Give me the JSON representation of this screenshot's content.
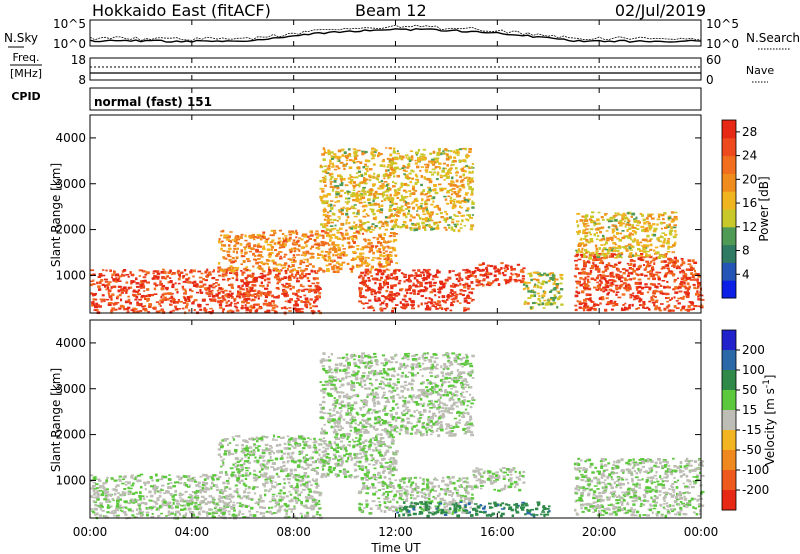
{
  "header": {
    "station": "Hokkaido East (fitACF)",
    "beam": "Beam 12",
    "date": "02/Jul/2019"
  },
  "top_panels": {
    "nsky_label": "N.Sky",
    "nsky_ticks": [
      "10^5",
      "10^0"
    ],
    "nsearch_label": "N.Search",
    "nsearch_ticks": [
      "10^5",
      "10^0"
    ],
    "freq_label_line1": "Freq.",
    "freq_label_line2": "[MHz]",
    "freq_ticks": [
      "18",
      "8"
    ],
    "nave_label": "Nave",
    "nave_ticks": [
      "60",
      "0"
    ],
    "cpid_label": "CPID",
    "cpid_text": "normal (fast) 151"
  },
  "axes": {
    "x_ticks": [
      "00:00",
      "04:00",
      "08:00",
      "12:00",
      "16:00",
      "20:00",
      "00:00"
    ],
    "xlabel": "Time UT",
    "ylabel": "Slant Range [km]",
    "y_ticks": [
      "1000",
      "2000",
      "3000",
      "4000"
    ]
  },
  "power_scale": {
    "label": "Power [dB]",
    "ticks": [
      "4",
      "8",
      "12",
      "16",
      "20",
      "24",
      "28"
    ],
    "colors": [
      "#0b1fe6",
      "#2454b5",
      "#2f7a62",
      "#4f9a55",
      "#c8c82a",
      "#f0b41e",
      "#f08c1e",
      "#f06e1e",
      "#ee4a1e",
      "#e62814"
    ]
  },
  "velocity_scale": {
    "label": "Velocity [m s^-1]",
    "ticks": [
      "200",
      "100",
      "50",
      "15",
      "-15",
      "-50",
      "-100",
      "-200"
    ],
    "colors": [
      "#2222cc",
      "#2a68a8",
      "#2f8a4a",
      "#5cc83c",
      "#bdbdb5",
      "#f2b420",
      "#f08820",
      "#ee5a1e",
      "#e62814"
    ]
  },
  "chart_data": [
    {
      "type": "heatmap",
      "title": "Power",
      "xlabel": "Time UT",
      "ylabel": "Slant Range [km]",
      "x_unit": "hours UT",
      "xlim": [
        0,
        24
      ],
      "ylim": [
        180,
        4500
      ],
      "colorbar": {
        "label": "Power [dB]",
        "range": [
          0,
          30
        ]
      },
      "echo_regions": [
        {
          "t": [
            0.0,
            9.0
          ],
          "r": [
            200,
            1150
          ],
          "value_db": 26
        },
        {
          "t": [
            5.0,
            12.0
          ],
          "r": [
            1100,
            2000
          ],
          "value_db": 20
        },
        {
          "t": [
            10.5,
            15.0
          ],
          "r": [
            250,
            1150
          ],
          "value_db": 28
        },
        {
          "t": [
            15.0,
            17.0
          ],
          "r": [
            800,
            1300
          ],
          "value_db": 27
        },
        {
          "t": [
            17.0,
            18.5
          ],
          "r": [
            300,
            1100
          ],
          "value_db": 14
        },
        {
          "t": [
            19.0,
            24.0
          ],
          "r": [
            250,
            1500
          ],
          "value_db": 26
        },
        {
          "t": [
            19.0,
            23.0
          ],
          "r": [
            1400,
            2400
          ],
          "value_db": 16
        },
        {
          "t": [
            9.0,
            15.0
          ],
          "r": [
            2000,
            3800
          ],
          "value_db": 16
        }
      ]
    },
    {
      "type": "heatmap",
      "title": "Velocity",
      "xlabel": "Time UT",
      "ylabel": "Slant Range [km]",
      "x_unit": "hours UT",
      "xlim": [
        0,
        24
      ],
      "ylim": [
        180,
        4500
      ],
      "colorbar": {
        "label": "Velocity [m s^-1]",
        "range": [
          -200,
          200
        ]
      },
      "echo_regions": [
        {
          "t": [
            0.0,
            9.0
          ],
          "r": [
            200,
            1150
          ],
          "value_ms": 0
        },
        {
          "t": [
            5.0,
            12.0
          ],
          "r": [
            1100,
            2000
          ],
          "value_ms": 0
        },
        {
          "t": [
            10.5,
            15.0
          ],
          "r": [
            300,
            1100
          ],
          "value_ms": 0
        },
        {
          "t": [
            12.0,
            18.0
          ],
          "r": [
            250,
            550
          ],
          "value_ms": 40
        },
        {
          "t": [
            15.0,
            17.0
          ],
          "r": [
            800,
            1300
          ],
          "value_ms": 0
        },
        {
          "t": [
            19.0,
            24.0
          ],
          "r": [
            250,
            1500
          ],
          "value_ms": 0
        },
        {
          "t": [
            9.0,
            15.0
          ],
          "r": [
            2000,
            3800
          ],
          "value_ms": 0
        }
      ]
    }
  ]
}
